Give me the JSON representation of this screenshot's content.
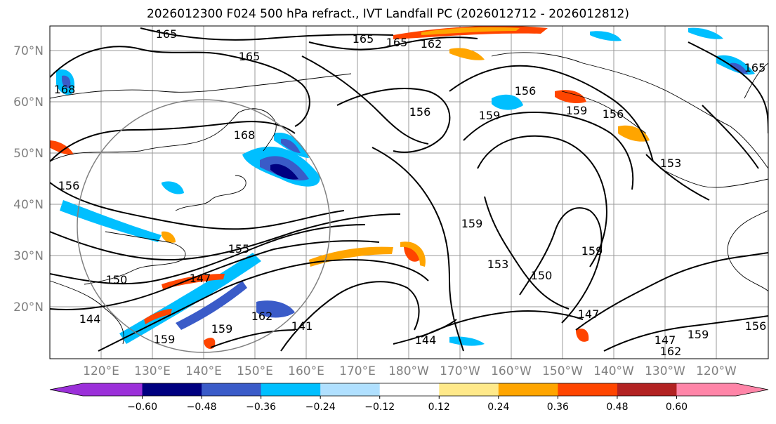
{
  "title": "2026012300 F024 500 hPa refract., IVT Landfall PC (2026012712 - 2026012812)",
  "lat_labels": [
    "70°N",
    "60°N",
    "50°N",
    "40°N",
    "30°N",
    "20°N"
  ],
  "lon_labels": [
    "120°E",
    "130°E",
    "140°E",
    "150°E",
    "160°E",
    "170°E",
    "180°W",
    "170°W",
    "160°W",
    "150°W",
    "140°W",
    "130°W",
    "120°W"
  ],
  "colorbar": {
    "colors": [
      "#9b30d9",
      "#000080",
      "#3a5bc8",
      "#00bfff",
      "#b0e0ff",
      "#ffffff",
      "#ffe98a",
      "#ffa500",
      "#ff4500",
      "#b22222",
      "#ff85a8"
    ],
    "under_color": "#9b30d9",
    "over_color": "#ff85a8",
    "tick_labels": [
      "−0.60",
      "−0.48",
      "−0.36",
      "−0.24",
      "−0.12",
      "0.12",
      "0.24",
      "0.36",
      "0.48",
      "0.60"
    ]
  },
  "contour_labels": [
    "165",
    "165",
    "165",
    "162",
    "165",
    "168",
    "156",
    "156",
    "159",
    "156",
    "159",
    "168",
    "153",
    "156",
    "159",
    "159",
    "155",
    "153",
    "150",
    "147",
    "150",
    "144",
    "147",
    "162",
    "159",
    "159",
    "141",
    "144",
    "147",
    "162",
    "159",
    "156",
    "165"
  ]
}
